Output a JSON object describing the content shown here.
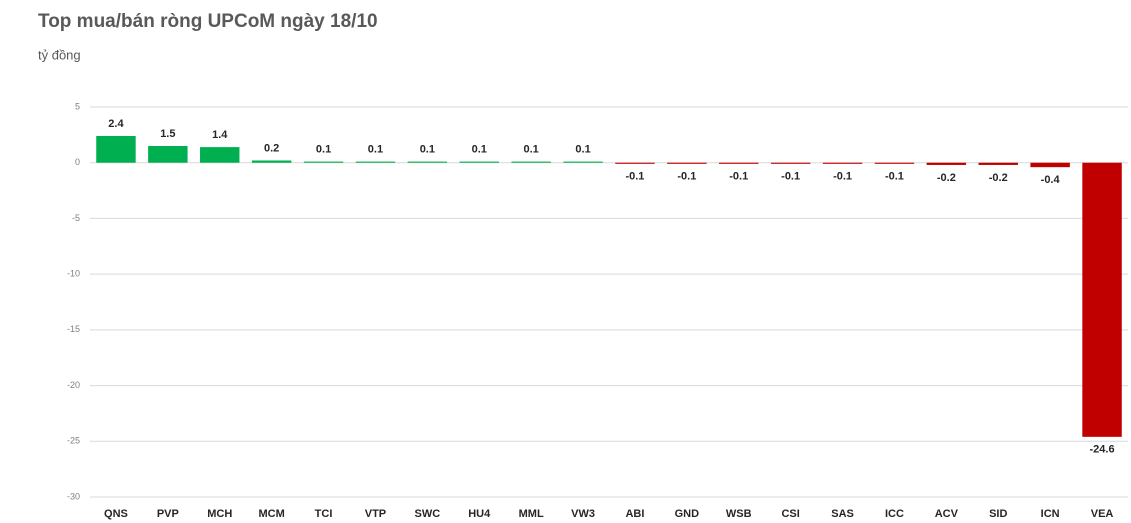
{
  "chart_data": {
    "type": "bar",
    "title": "Top mua/bán ròng UPCoM ngày 18/10",
    "y_label": "tỷ đồng",
    "categories": [
      "QNS",
      "PVP",
      "MCH",
      "MCM",
      "TCI",
      "VTP",
      "SWC",
      "HU4",
      "MML",
      "VW3",
      "ABI",
      "GND",
      "WSB",
      "CSI",
      "SAS",
      "ICC",
      "ACV",
      "SID",
      "ICN",
      "VEA"
    ],
    "values": [
      2.4,
      1.5,
      1.4,
      0.2,
      0.1,
      0.1,
      0.1,
      0.1,
      0.1,
      0.1,
      -0.1,
      -0.1,
      -0.1,
      -0.1,
      -0.1,
      -0.1,
      -0.2,
      -0.2,
      -0.4,
      -24.6
    ],
    "colors": [
      "#00b050",
      "#00b050",
      "#00b050",
      "#00b050",
      "#00b050",
      "#00b050",
      "#00b050",
      "#00b050",
      "#00b050",
      "#00b050",
      "#c00000",
      "#c00000",
      "#c00000",
      "#c00000",
      "#c00000",
      "#c00000",
      "#c00000",
      "#c00000",
      "#c00000",
      "#c00000"
    ],
    "ylim": [
      -30,
      5
    ],
    "yticks": [
      5,
      0,
      -5,
      -10,
      -15,
      -20,
      -25,
      -30
    ],
    "grid": true
  }
}
